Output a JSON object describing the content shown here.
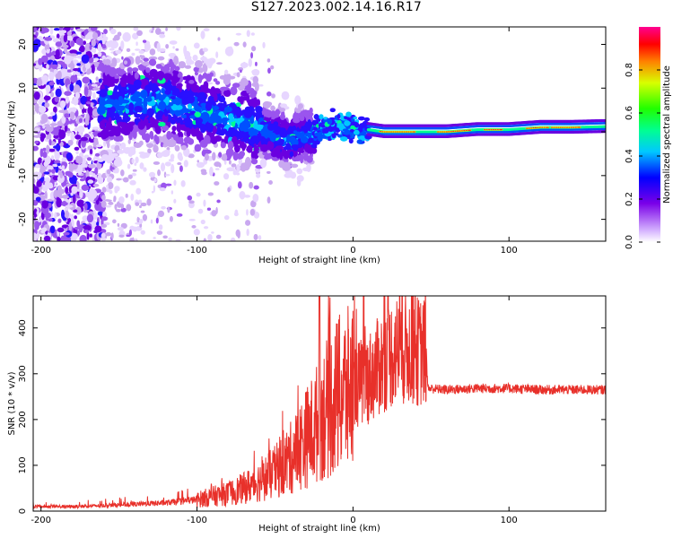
{
  "title": "S127.2023.002.14.16.R17",
  "colors": {
    "spectrogram_low": "#c9a8f0",
    "spectrogram_mid": "#5a00d8",
    "snr_line": "#e8302a"
  },
  "chart_data": [
    {
      "type": "heatmap",
      "title": "S127.2023.002.14.16.R17",
      "xlabel": "Height of straight line (km)",
      "ylabel": "Frequency (Hz)",
      "xlim": [
        -205,
        162
      ],
      "ylim": [
        -25,
        24
      ],
      "xticks": [
        -200,
        -100,
        0,
        100
      ],
      "yticks": [
        -20,
        -10,
        0,
        10,
        20
      ],
      "colorbar": {
        "label": "Normalized spectral amplitude",
        "range": [
          0,
          1
        ],
        "ticks": [
          "0.0",
          "0.2",
          "0.4",
          "0.6",
          "0.8"
        ]
      },
      "ridge": {
        "x": [
          -160,
          -140,
          -120,
          -100,
          -80,
          -60,
          -50,
          -40,
          -30,
          -20,
          -10,
          0,
          10,
          20,
          40,
          60,
          80,
          100,
          120,
          140,
          162
        ],
        "y": [
          6,
          7,
          7,
          5,
          3,
          1,
          -1,
          -2,
          -1,
          0.5,
          1,
          1,
          0.5,
          0,
          0,
          0,
          0.5,
          0.5,
          1,
          1,
          1.2
        ]
      }
    },
    {
      "type": "line",
      "xlabel": "Height of straight line (km)",
      "ylabel": "SNR (10 * v/v)",
      "xlim": [
        -205,
        162
      ],
      "ylim": [
        0,
        470
      ],
      "xticks": [
        -200,
        -100,
        0,
        100
      ],
      "yticks": [
        0,
        100,
        200,
        300,
        400
      ],
      "series": [
        {
          "name": "SNR",
          "x": [
            -205,
            -180,
            -160,
            -140,
            -120,
            -100,
            -90,
            -80,
            -70,
            -60,
            -50,
            -40,
            -30,
            -25,
            -20,
            -10,
            0,
            10,
            20,
            25,
            30,
            40,
            47,
            48,
            60,
            80,
            100,
            120,
            140,
            162
          ],
          "values": [
            10,
            10,
            12,
            15,
            18,
            25,
            32,
            38,
            50,
            65,
            85,
            115,
            160,
            180,
            210,
            250,
            270,
            290,
            330,
            345,
            355,
            350,
            345,
            268,
            265,
            268,
            268,
            265,
            265,
            265
          ]
        }
      ]
    }
  ]
}
